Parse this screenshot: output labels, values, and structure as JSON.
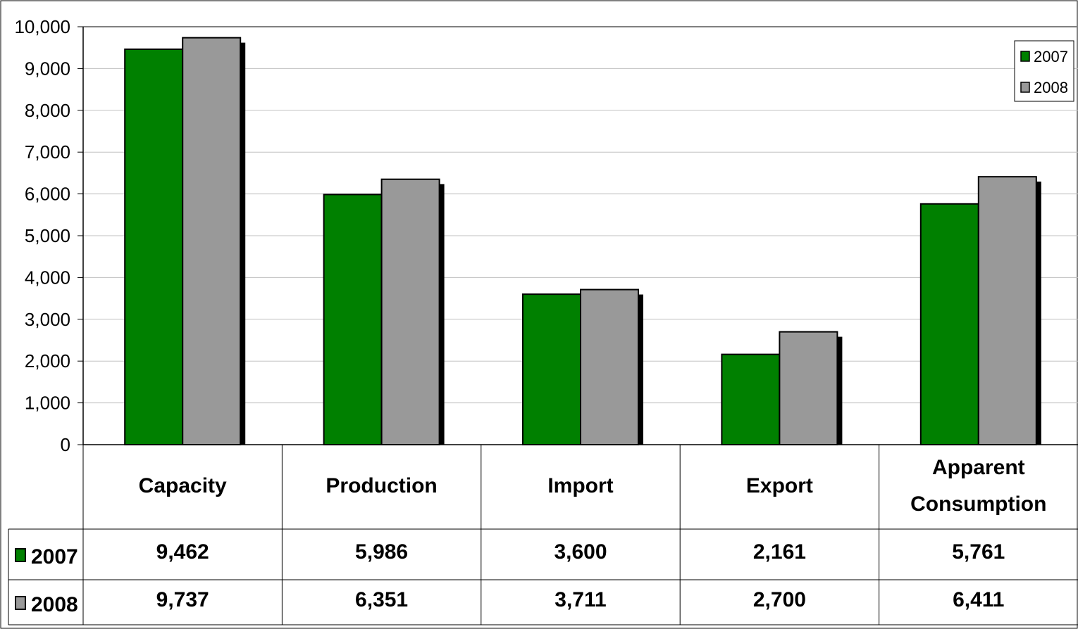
{
  "chart_data": {
    "type": "bar",
    "categories": [
      "Capacity",
      "Production",
      "Import",
      "Export",
      "Apparent Consumption"
    ],
    "series": [
      {
        "name": "2007",
        "values": [
          9462,
          5986,
          3600,
          2161,
          5761
        ],
        "color": "#008000",
        "labels": [
          "9,462",
          "5,986",
          "3,600",
          "2,161",
          "5,761"
        ]
      },
      {
        "name": "2008",
        "values": [
          9737,
          6351,
          3711,
          2700,
          6411
        ],
        "color": "#999999",
        "labels": [
          "9,737",
          "6,351",
          "3,711",
          "2,700",
          "6,411"
        ]
      }
    ],
    "yticks": [
      "0",
      "1,000",
      "2,000",
      "3,000",
      "4,000",
      "5,000",
      "6,000",
      "7,000",
      "8,000",
      "9,000",
      "10,000"
    ],
    "ylim": [
      0,
      10000
    ],
    "grid": true,
    "legend_position": "top-right",
    "data_table": true
  }
}
